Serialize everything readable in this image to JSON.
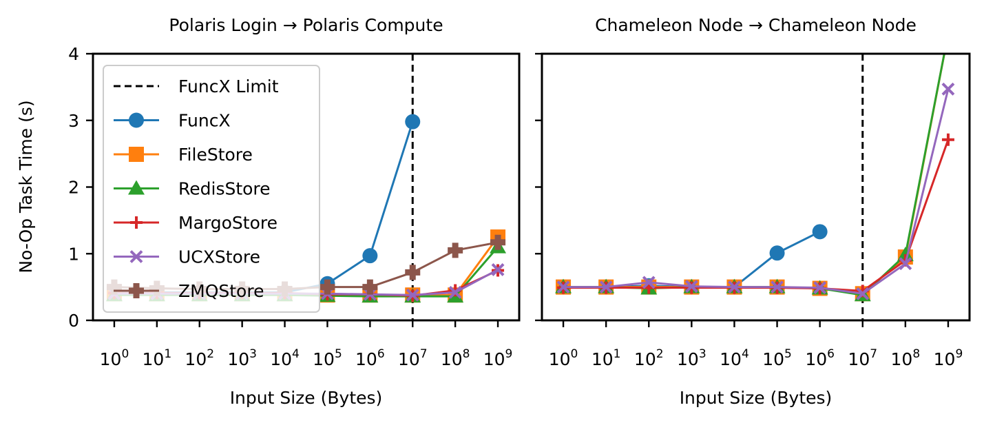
{
  "figure": {
    "ylabel": "No-Op Task Time (s)",
    "xlabel": "Input Size (Bytes)",
    "limit_label": "FuncX Limit"
  },
  "chart_data": [
    {
      "type": "line",
      "title": "Polaris Login → Polaris Compute",
      "xlabel": "Input Size (Bytes)",
      "ylabel": "No-Op Task Time (s)",
      "x_scale": "log",
      "x": [
        1,
        10,
        100,
        1000,
        10000,
        100000,
        1000000,
        10000000,
        100000000,
        1000000000
      ],
      "x_ticks": [
        {
          "base": "10",
          "exp": "0"
        },
        {
          "base": "10",
          "exp": "1"
        },
        {
          "base": "10",
          "exp": "2"
        },
        {
          "base": "10",
          "exp": "3"
        },
        {
          "base": "10",
          "exp": "4"
        },
        {
          "base": "10",
          "exp": "5"
        },
        {
          "base": "10",
          "exp": "6"
        },
        {
          "base": "10",
          "exp": "7"
        },
        {
          "base": "10",
          "exp": "8"
        },
        {
          "base": "10",
          "exp": "9"
        }
      ],
      "ylim": [
        0,
        4
      ],
      "yticks": [
        "0",
        "1",
        "2",
        "3",
        "4"
      ],
      "show_ytick_labels": true,
      "limit_x": 10000000,
      "grid": false,
      "legend": "upper-left",
      "series": [
        {
          "name": "FuncX",
          "color": "#1f77b4",
          "marker": "circle",
          "values": [
            0.42,
            0.42,
            0.42,
            0.42,
            0.42,
            0.55,
            0.97,
            2.98,
            null,
            null
          ]
        },
        {
          "name": "FileStore",
          "color": "#ff7f0e",
          "marker": "square",
          "values": [
            0.4,
            0.4,
            0.4,
            0.4,
            0.4,
            0.38,
            0.38,
            0.38,
            0.38,
            1.25
          ]
        },
        {
          "name": "RedisStore",
          "color": "#2ca02c",
          "marker": "triangle",
          "values": [
            0.38,
            0.38,
            0.38,
            0.38,
            0.38,
            0.37,
            0.36,
            0.36,
            0.36,
            1.1
          ]
        },
        {
          "name": "MargoStore",
          "color": "#d62728",
          "marker": "plus",
          "values": [
            0.41,
            0.41,
            0.41,
            0.41,
            0.41,
            0.39,
            0.39,
            0.37,
            0.45,
            0.75
          ]
        },
        {
          "name": "UCXStore",
          "color": "#9467bd",
          "marker": "x",
          "values": [
            0.4,
            0.4,
            0.4,
            0.4,
            0.4,
            0.4,
            0.39,
            0.38,
            0.42,
            0.76
          ]
        },
        {
          "name": "ZMQStore",
          "color": "#8c564b",
          "marker": "pluscross",
          "values": [
            0.5,
            0.48,
            0.47,
            0.47,
            0.47,
            0.5,
            0.5,
            0.72,
            1.05,
            1.17
          ]
        }
      ]
    },
    {
      "type": "line",
      "title": "Chameleon Node → Chameleon Node",
      "xlabel": "Input Size (Bytes)",
      "x_scale": "log",
      "x": [
        1,
        10,
        100,
        1000,
        10000,
        100000,
        1000000,
        10000000,
        100000000,
        1000000000
      ],
      "x_ticks": [
        {
          "base": "10",
          "exp": "0"
        },
        {
          "base": "10",
          "exp": "1"
        },
        {
          "base": "10",
          "exp": "2"
        },
        {
          "base": "10",
          "exp": "3"
        },
        {
          "base": "10",
          "exp": "4"
        },
        {
          "base": "10",
          "exp": "5"
        },
        {
          "base": "10",
          "exp": "6"
        },
        {
          "base": "10",
          "exp": "7"
        },
        {
          "base": "10",
          "exp": "8"
        },
        {
          "base": "10",
          "exp": "9"
        }
      ],
      "ylim": [
        0,
        4
      ],
      "yticks": [
        "0",
        "1",
        "2",
        "3",
        "4"
      ],
      "show_ytick_labels": false,
      "limit_x": 10000000,
      "grid": false,
      "series": [
        {
          "name": "FuncX",
          "color": "#1f77b4",
          "marker": "circle",
          "values": [
            0.5,
            0.5,
            0.52,
            0.5,
            0.5,
            1.01,
            1.33,
            null,
            null,
            null
          ]
        },
        {
          "name": "FileStore",
          "color": "#ff7f0e",
          "marker": "square",
          "values": [
            0.5,
            0.5,
            0.5,
            0.5,
            0.5,
            0.5,
            0.48,
            0.4,
            0.95,
            4.3
          ]
        },
        {
          "name": "RedisStore",
          "color": "#2ca02c",
          "marker": "triangle",
          "values": [
            0.5,
            0.5,
            0.48,
            0.5,
            0.5,
            0.5,
            0.48,
            0.38,
            0.98,
            4.3
          ]
        },
        {
          "name": "MargoStore",
          "color": "#d62728",
          "marker": "plus",
          "values": [
            0.49,
            0.49,
            0.49,
            0.49,
            0.49,
            0.49,
            0.48,
            0.44,
            0.9,
            2.71
          ]
        },
        {
          "name": "UCXStore",
          "color": "#9467bd",
          "marker": "x",
          "values": [
            0.5,
            0.5,
            0.57,
            0.51,
            0.5,
            0.5,
            0.49,
            0.4,
            0.85,
            3.47
          ]
        }
      ]
    }
  ]
}
